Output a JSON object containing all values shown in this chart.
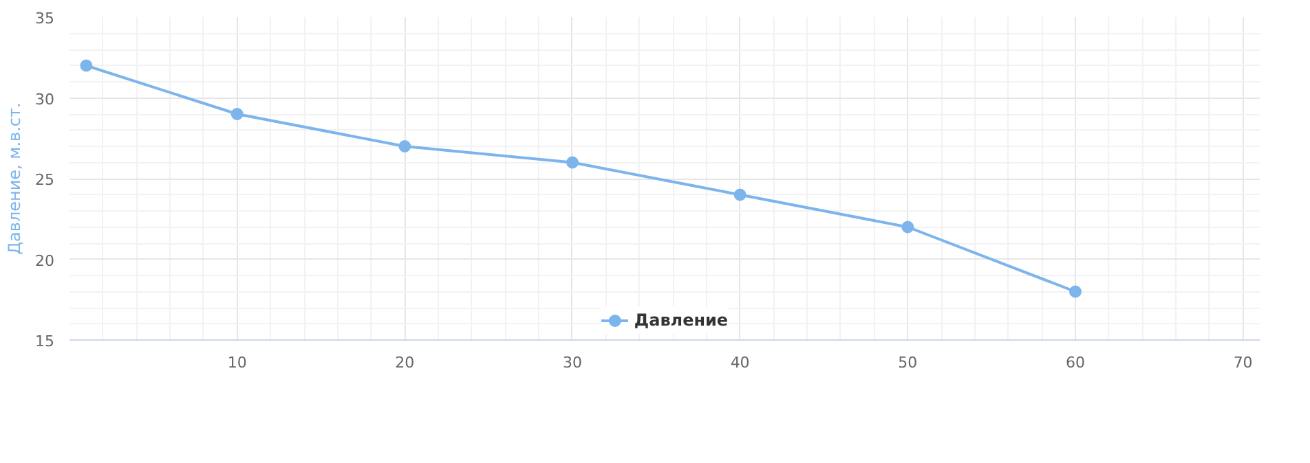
{
  "chart_data": {
    "type": "line",
    "ylabel": "Давление, м.в.ст.",
    "x": [
      1,
      10,
      20,
      30,
      40,
      50,
      60
    ],
    "series": [
      {
        "name": "Давление",
        "color": "#7cb5ec",
        "values": [
          32,
          29,
          27,
          26,
          24,
          22,
          18
        ]
      }
    ],
    "xlim": [
      0,
      71
    ],
    "xticks": [
      10,
      20,
      30,
      40,
      50,
      60,
      70
    ],
    "ylim": [
      15,
      35
    ],
    "yticks": [
      15,
      20,
      25,
      30,
      35
    ],
    "grid": true,
    "legend": "bottom",
    "marker": "circle",
    "line_style": "solid"
  }
}
